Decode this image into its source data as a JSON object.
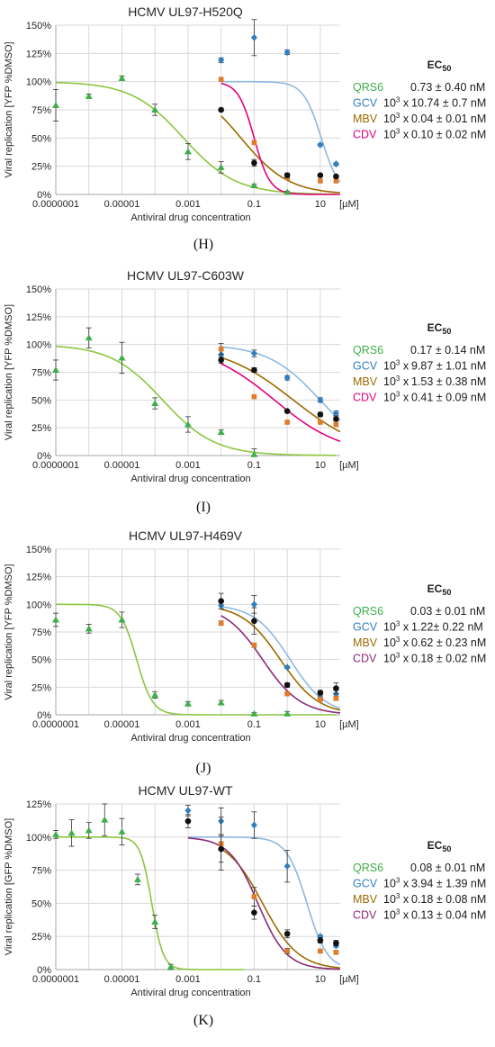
{
  "ec_title": "EC",
  "ec_sub": "50",
  "chart_data": [
    {
      "type": "scatter",
      "panel": "H",
      "title": "HCMV UL97-H520Q",
      "xlabel": "Antiviral drug concentration",
      "ylabel": "Viral replication [YFP %DMSO]",
      "x_scale": "log",
      "xlim": [
        1e-07,
        40
      ],
      "ylim": [
        0,
        1.5
      ],
      "x_ticks": [
        "0.0000001",
        "0.00001",
        "0.001",
        "0.1",
        "10"
      ],
      "y_ticks": [
        "0%",
        "25%",
        "50%",
        "75%",
        "100%",
        "125%",
        "150%"
      ],
      "unit": "[µM]",
      "series": [
        {
          "name": "QRS6",
          "color": "#3fae49",
          "line": "#8cc63f",
          "marker": "triangle",
          "ec50": "0.73 ± 0.40 nM",
          "x": [
            1e-07,
            1e-06,
            1e-05,
            0.0001,
            0.001,
            0.01,
            0.1,
            1
          ],
          "y": [
            0.79,
            0.87,
            1.03,
            0.75,
            0.38,
            0.24,
            0.08,
            0.02
          ],
          "err": [
            0.14,
            0.02,
            0.02,
            0.05,
            0.07,
            0.05,
            0.01,
            0.01
          ],
          "fit": {
            "top": 1.0,
            "ic50": 0.00073,
            "hill": 0.55
          }
        },
        {
          "name": "GCV",
          "color": "#2f7fc1",
          "line": "#8fb8e0",
          "marker": "diamond",
          "prefix": "10",
          "ec50": "10.74 ± 0.7 nM",
          "x": [
            0.01,
            0.1,
            1,
            10,
            30
          ],
          "y": [
            1.19,
            1.39,
            1.26,
            0.44,
            0.27
          ],
          "err": [
            0.02,
            0.16,
            0.02,
            0.01,
            0.01
          ],
          "fit": {
            "top": 1.0,
            "ic50": 10.74,
            "hill": 1.6
          }
        },
        {
          "name": "MBV",
          "color": "#9c6a00",
          "line": "#9c6a00",
          "marker": "square",
          "prefix": "10",
          "ec50": "0.04 ± 0.01 nM",
          "x": [
            0.01,
            0.1,
            1,
            10,
            30
          ],
          "y": [
            1.02,
            0.46,
            0.15,
            0.12,
            0.12
          ],
          "err": [
            0,
            0,
            0,
            0,
            0
          ],
          "fit": {
            "top": 1.0,
            "ic50": 0.04,
            "hill": 0.6
          }
        },
        {
          "name": "CDV",
          "color": "#e5007e",
          "line": "#e5007e",
          "marker": "circle",
          "prefix": "10",
          "ec50": "0.10 ± 0.02 nM",
          "x": [
            0.01,
            0.1,
            1,
            10,
            30
          ],
          "y": [
            0.75,
            0.28,
            0.17,
            0.17,
            0.16
          ],
          "err": [
            0,
            0.03,
            0.02,
            0.01,
            0.01
          ],
          "fit": {
            "top": 1.0,
            "ic50": 0.1,
            "hill": 1.8
          }
        }
      ]
    },
    {
      "type": "scatter",
      "panel": "I",
      "title": "HCMV UL97-C603W",
      "xlabel": "Antiviral drug concentration",
      "ylabel": "Viral replication [YFP %DMSO]",
      "x_scale": "log",
      "xlim": [
        1e-07,
        40
      ],
      "ylim": [
        0,
        1.5
      ],
      "x_ticks": [
        "0.0000001",
        "0.00001",
        "0.001",
        "0.1",
        "10"
      ],
      "y_ticks": [
        "0%",
        "25%",
        "50%",
        "75%",
        "100%",
        "125%",
        "150%"
      ],
      "unit": "[µM]",
      "series": [
        {
          "name": "QRS6",
          "color": "#3fae49",
          "line": "#8cc63f",
          "marker": "triangle",
          "ec50": "0.17 ± 0.14 nM",
          "x": [
            1e-07,
            1e-06,
            1e-05,
            0.0001,
            0.001,
            0.01,
            0.1
          ],
          "y": [
            0.77,
            1.06,
            0.88,
            0.47,
            0.28,
            0.21,
            0.01
          ],
          "err": [
            0.09,
            0.09,
            0.14,
            0.05,
            0.07,
            0.02,
            0.05
          ],
          "fit": {
            "top": 1.0,
            "ic50": 0.00017,
            "hill": 0.55
          }
        },
        {
          "name": "GCV",
          "color": "#2f7fc1",
          "line": "#8fb8e0",
          "marker": "diamond",
          "prefix": "10",
          "ec50": "9.87 ± 1.01 nM",
          "x": [
            0.01,
            0.1,
            1,
            10,
            30
          ],
          "y": [
            0.91,
            0.92,
            0.7,
            0.5,
            0.38
          ],
          "err": [
            0.04,
            0.03,
            0.02,
            0.02,
            0.02
          ],
          "fit": {
            "top": 1.0,
            "ic50": 9.87,
            "hill": 0.55
          }
        },
        {
          "name": "MBV",
          "color": "#9c6a00",
          "line": "#9c6a00",
          "marker": "square",
          "prefix": "10",
          "ec50": "1.53 ± 0.38 nM",
          "x": [
            0.01,
            0.1,
            1,
            10,
            30
          ],
          "y": [
            0.96,
            0.53,
            0.3,
            0.3,
            0.28
          ],
          "err": [
            0.05,
            0,
            0,
            0,
            0
          ],
          "fit": {
            "top": 1.0,
            "ic50": 1.53,
            "hill": 0.4
          }
        },
        {
          "name": "CDV",
          "color": "#e5007e",
          "line": "#e5007e",
          "marker": "circle",
          "prefix": "10",
          "ec50": "0.41 ± 0.09 nM",
          "x": [
            0.01,
            0.1,
            1,
            10,
            30
          ],
          "y": [
            0.86,
            0.77,
            0.4,
            0.37,
            0.33
          ],
          "err": [
            0.03,
            0.02,
            0.01,
            0.02,
            0.02
          ],
          "fit": {
            "top": 1.0,
            "ic50": 0.41,
            "hill": 0.42
          }
        }
      ]
    },
    {
      "type": "scatter",
      "panel": "J",
      "title": "HCMV UL97-H469V",
      "xlabel": "Antiviral drug concentration",
      "ylabel": "Viral replication [YFP %DMSO]",
      "x_scale": "log",
      "xlim": [
        1e-07,
        40
      ],
      "ylim": [
        0,
        1.5
      ],
      "x_ticks": [
        "0.0000001",
        "0.00001",
        "0.001",
        "0.1",
        "10"
      ],
      "y_ticks": [
        "0%",
        "25%",
        "50%",
        "75%",
        "100%",
        "125%",
        "150%"
      ],
      "unit": "[µM]",
      "series": [
        {
          "name": "QRS6",
          "color": "#3fae49",
          "line": "#8cc63f",
          "marker": "triangle",
          "ec50": "0.03 ± 0.01 nM",
          "x": [
            1e-07,
            1e-06,
            1e-05,
            0.0001,
            0.001,
            0.01,
            0.1,
            1
          ],
          "y": [
            0.86,
            0.78,
            0.86,
            0.18,
            0.1,
            0.11,
            0.01,
            0.01
          ],
          "err": [
            0.06,
            0.04,
            0.07,
            0.03,
            0.02,
            0.02,
            0.01,
            0.02
          ],
          "fit": {
            "top": 1.0,
            "ic50": 2.8e-05,
            "hill": 1.8
          }
        },
        {
          "name": "GCV",
          "color": "#2f7fc1",
          "line": "#8fb8e0",
          "marker": "diamond",
          "prefix": "10",
          "ec50": "1.22± 0.22 nM",
          "x": [
            0.01,
            0.1,
            1,
            10,
            30
          ],
          "y": [
            0.99,
            1.0,
            0.43,
            0.15,
            0.19
          ],
          "err": [
            0.03,
            0.08,
            0.01,
            0.02,
            0.03
          ],
          "fit": {
            "top": 1.0,
            "ic50": 1.22,
            "hill": 0.8
          }
        },
        {
          "name": "MBV",
          "color": "#9c6a00",
          "line": "#9c6a00",
          "marker": "square",
          "prefix": "10",
          "ec50": "0.62 ± 0.23 nM",
          "x": [
            0.01,
            0.1,
            1,
            10,
            30
          ],
          "y": [
            0.83,
            0.63,
            0.19,
            0.14,
            0.15
          ],
          "err": [
            0.02,
            0.02,
            0.01,
            0.01,
            0.02
          ],
          "fit": {
            "top": 1.0,
            "ic50": 0.62,
            "hill": 0.75
          }
        },
        {
          "name": "CDV",
          "color": "#8a2b7a",
          "line": "#8a2b7a",
          "marker": "circle",
          "prefix": "10",
          "ec50": "0.18 ± 0.02 nM",
          "x": [
            0.01,
            0.1,
            1,
            10,
            30
          ],
          "y": [
            1.03,
            0.85,
            0.27,
            0.2,
            0.24
          ],
          "err": [
            0.07,
            0.12,
            0.02,
            0.02,
            0.05
          ],
          "fit": {
            "top": 1.0,
            "ic50": 0.18,
            "hill": 0.75
          }
        }
      ]
    },
    {
      "type": "scatter",
      "panel": "K",
      "title": "HCMV UL97-WT",
      "xlabel": "Antiviral drug concentration",
      "ylabel": "Viral replication [GFP %DMSO]",
      "x_scale": "log",
      "xlim": [
        1e-07,
        40
      ],
      "ylim": [
        0,
        1.25
      ],
      "x_ticks": [
        "0.0000001",
        "0.00001",
        "0.001",
        "0.1",
        "10"
      ],
      "y_ticks": [
        "0%",
        "25%",
        "50%",
        "75%",
        "100%",
        "125%"
      ],
      "unit": "[µM]",
      "series": [
        {
          "name": "QRS6",
          "color": "#3fae49",
          "line": "#8cc63f",
          "marker": "triangle",
          "ec50": "0.08 ± 0.01 nM",
          "x": [
            1e-07,
            3e-07,
            1e-06,
            3e-06,
            1e-05,
            3e-05,
            0.0001,
            0.0003
          ],
          "y": [
            1.02,
            1.03,
            1.05,
            1.13,
            1.04,
            0.68,
            0.36,
            0.02
          ],
          "err": [
            0.03,
            0.1,
            0.06,
            0.12,
            0.1,
            0.04,
            0.05,
            0.02
          ],
          "fit": {
            "top": 1.0,
            "ic50": 8e-05,
            "hill": 2.5
          }
        },
        {
          "name": "GCV",
          "color": "#2f7fc1",
          "line": "#8fb8e0",
          "marker": "diamond",
          "prefix": "10",
          "ec50": "3.94 ± 1.39 nM",
          "x": [
            0.001,
            0.01,
            0.1,
            1,
            10,
            30
          ],
          "y": [
            1.2,
            1.12,
            1.09,
            0.78,
            0.25,
            0.18
          ],
          "err": [
            0.04,
            0.1,
            0.1,
            0.12,
            0.01,
            0.01
          ],
          "fit": {
            "top": 1.0,
            "ic50": 3.94,
            "hill": 1.4
          }
        },
        {
          "name": "MBV",
          "color": "#9c6a00",
          "line": "#9c6a00",
          "marker": "square",
          "prefix": "10",
          "ec50": "0.18 ± 0.08 nM",
          "x": [
            0.01,
            0.1,
            1,
            10,
            30
          ],
          "y": [
            0.95,
            0.55,
            0.14,
            0.14,
            0.13
          ],
          "err": [
            0.2,
            0.07,
            0.02,
            0.01,
            0.01
          ],
          "fit": {
            "top": 1.0,
            "ic50": 0.18,
            "hill": 0.8
          }
        },
        {
          "name": "CDV",
          "color": "#8a2b7a",
          "line": "#8a2b7a",
          "marker": "circle",
          "prefix": "10",
          "ec50": "0.13 ± 0.04 nM",
          "x": [
            0.001,
            0.01,
            0.1,
            1,
            10,
            30
          ],
          "y": [
            1.12,
            0.91,
            0.43,
            0.27,
            0.22,
            0.2
          ],
          "err": [
            0.05,
            0.1,
            0.05,
            0.03,
            0.02,
            0.02
          ],
          "fit": {
            "top": 1.0,
            "ic50": 0.13,
            "hill": 1.0
          }
        }
      ]
    }
  ]
}
